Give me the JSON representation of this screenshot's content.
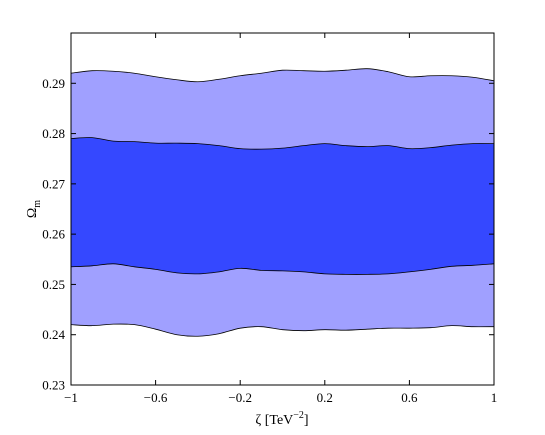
{
  "chart_data": {
    "type": "area",
    "title": "",
    "xlabel": {
      "main": "ζ [TeV",
      "sup": "−2",
      "close": "]"
    },
    "ylabel": {
      "main": "Ω",
      "sub": "m"
    },
    "xlim": [
      -1,
      1
    ],
    "ylim": [
      0.23,
      0.3
    ],
    "x_ticks": [
      -1,
      -0.6,
      -0.2,
      0.2,
      0.6,
      1
    ],
    "x_tick_labels": [
      "−1",
      "−0.6",
      "−0.2",
      "0.2",
      "0.6",
      "1"
    ],
    "y_ticks": [
      0.23,
      0.24,
      0.25,
      0.26,
      0.27,
      0.28,
      0.29
    ],
    "y_tick_labels": [
      "0.23",
      "0.24",
      "0.25",
      "0.26",
      "0.27",
      "0.28",
      "0.29"
    ],
    "grid": false,
    "legend": "none",
    "x": [
      -1,
      -0.9,
      -0.8,
      -0.7,
      -0.6,
      -0.5,
      -0.4,
      -0.3,
      -0.2,
      -0.1,
      0,
      0.1,
      0.2,
      0.3,
      0.4,
      0.5,
      0.6,
      0.7,
      0.8,
      0.9,
      1
    ],
    "regions": [
      {
        "level": "outer",
        "color": "#a0a0ff",
        "upper": [
          0.292,
          0.2925,
          0.2924,
          0.292,
          0.2913,
          0.2907,
          0.2903,
          0.2908,
          0.2915,
          0.292,
          0.2926,
          0.2925,
          0.2924,
          0.2926,
          0.2929,
          0.2923,
          0.2913,
          0.2915,
          0.2915,
          0.2912,
          0.2905
        ],
        "lower": [
          0.242,
          0.2418,
          0.2421,
          0.242,
          0.2411,
          0.24,
          0.2397,
          0.2402,
          0.2413,
          0.2416,
          0.241,
          0.2408,
          0.241,
          0.2409,
          0.2411,
          0.2413,
          0.2413,
          0.2414,
          0.2418,
          0.2416,
          0.2416
        ]
      },
      {
        "level": "inner",
        "color": "#3548ff",
        "upper": [
          0.279,
          0.2792,
          0.2785,
          0.2784,
          0.2781,
          0.2781,
          0.278,
          0.2776,
          0.277,
          0.2769,
          0.2771,
          0.2776,
          0.278,
          0.2776,
          0.2774,
          0.2776,
          0.277,
          0.2772,
          0.2777,
          0.278,
          0.278
        ],
        "lower": [
          0.2535,
          0.2537,
          0.2541,
          0.2535,
          0.253,
          0.2523,
          0.2521,
          0.2525,
          0.2532,
          0.2528,
          0.2527,
          0.2525,
          0.2521,
          0.252,
          0.252,
          0.2521,
          0.2525,
          0.253,
          0.2536,
          0.2538,
          0.2541
        ]
      }
    ]
  }
}
